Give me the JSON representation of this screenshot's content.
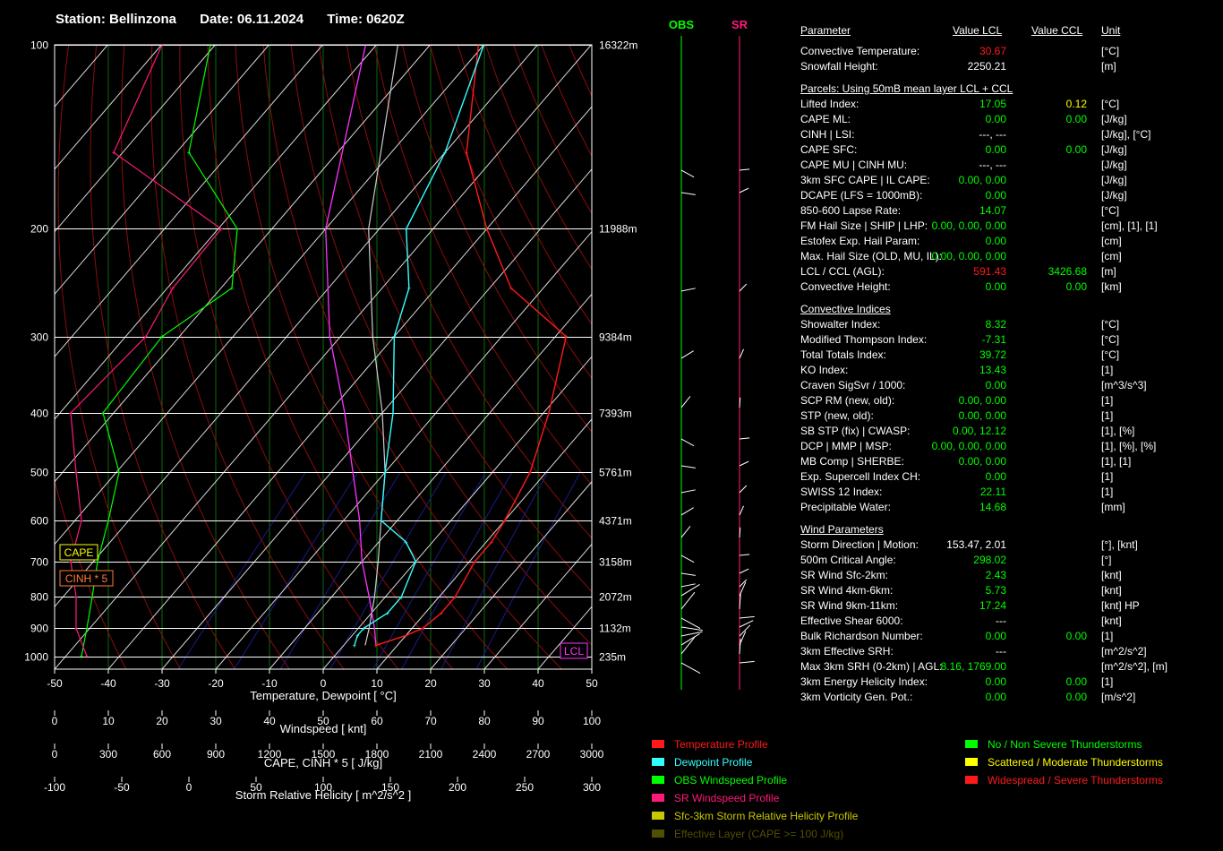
{
  "header": {
    "station": "Station: Bellinzona",
    "date": "Date: 06.11.2024",
    "time": "Time: 0620Z"
  },
  "chart_data": {
    "type": "line",
    "xlabel": "Temperature, Dewpoint  [ °C]",
    "xlim": [
      -50,
      50
    ],
    "x_ticks": [
      "-50",
      "-40",
      "-30",
      "-20",
      "-10",
      "0",
      "10",
      "20",
      "30",
      "40",
      "50"
    ],
    "pressure_ticks": [
      "100",
      "200",
      "300",
      "400",
      "500",
      "600",
      "700",
      "800",
      "900",
      "1000"
    ],
    "height_labels": [
      "16322m",
      "11988m",
      "9384m",
      "7393m",
      "5761m",
      "4371m",
      "3158m",
      "2072m",
      "1132m",
      "235m"
    ],
    "temperature": [
      [
        960,
        6
      ],
      [
        925,
        10
      ],
      [
        900,
        12
      ],
      [
        850,
        13
      ],
      [
        800,
        13
      ],
      [
        700,
        11
      ],
      [
        650,
        11
      ],
      [
        600,
        10
      ],
      [
        500,
        7
      ],
      [
        400,
        1
      ],
      [
        300,
        -8
      ],
      [
        250,
        -26
      ],
      [
        200,
        -40
      ],
      [
        150,
        -56
      ],
      [
        100,
        -71
      ]
    ],
    "dewpoint": [
      [
        960,
        2
      ],
      [
        925,
        1
      ],
      [
        900,
        1
      ],
      [
        850,
        3
      ],
      [
        800,
        3
      ],
      [
        700,
        0
      ],
      [
        650,
        -5
      ],
      [
        600,
        -13
      ],
      [
        500,
        -20
      ],
      [
        400,
        -28
      ],
      [
        300,
        -40
      ],
      [
        250,
        -45
      ],
      [
        200,
        -55
      ],
      [
        150,
        -60
      ],
      [
        100,
        -70
      ]
    ],
    "parcel": [
      [
        960,
        6
      ],
      [
        900,
        3
      ],
      [
        800,
        -3
      ],
      [
        700,
        -10
      ],
      [
        600,
        -17
      ],
      [
        500,
        -26
      ],
      [
        400,
        -37
      ],
      [
        300,
        -52
      ],
      [
        200,
        -70
      ],
      [
        100,
        -92
      ]
    ],
    "parcel2": [
      [
        960,
        4
      ],
      [
        900,
        2
      ],
      [
        800,
        -2
      ],
      [
        700,
        -7
      ],
      [
        600,
        -13
      ],
      [
        500,
        -20
      ],
      [
        400,
        -30
      ],
      [
        300,
        -44
      ],
      [
        200,
        -62
      ],
      [
        100,
        -86
      ]
    ],
    "windspeed_axis": {
      "label": "Windspeed  [ knt]",
      "ticks": [
        "0",
        "10",
        "20",
        "30",
        "40",
        "50",
        "60",
        "70",
        "80",
        "90",
        "100"
      ]
    },
    "obs_wind": [
      [
        1000,
        5
      ],
      [
        900,
        6
      ],
      [
        800,
        7
      ],
      [
        700,
        8
      ],
      [
        600,
        10
      ],
      [
        500,
        12
      ],
      [
        400,
        9
      ],
      [
        300,
        20
      ],
      [
        250,
        33
      ],
      [
        200,
        34
      ],
      [
        150,
        25
      ],
      [
        100,
        29
      ]
    ],
    "sr_wind": [
      [
        1000,
        6
      ],
      [
        900,
        4
      ],
      [
        800,
        4
      ],
      [
        700,
        3
      ],
      [
        600,
        5
      ],
      [
        500,
        4
      ],
      [
        400,
        3
      ],
      [
        300,
        17
      ],
      [
        250,
        22
      ],
      [
        200,
        31
      ],
      [
        150,
        11
      ],
      [
        100,
        20
      ]
    ],
    "cape_axis": {
      "label": "CAPE, CINH * 5  [ J/kg]",
      "ticks": [
        "0",
        "300",
        "600",
        "900",
        "1200",
        "1500",
        "1800",
        "2100",
        "2400",
        "2700",
        "3000"
      ]
    },
    "srh_axis": {
      "label": "Storm Relative Helicity  [ m^2/s^2 ]",
      "ticks": [
        "-100",
        "-50",
        "0",
        "50",
        "100",
        "150",
        "200",
        "250",
        "300"
      ]
    },
    "box_labels": {
      "cape": "CAPE",
      "cinh": "CINH * 5",
      "lcl": "LCL"
    },
    "hodo_titles": {
      "obs": "OBS",
      "sr": "SR"
    }
  },
  "table": {
    "header": {
      "name": "Parameter",
      "lcl": "Value LCL",
      "ccl": "Value CCL",
      "unit": "Unit"
    },
    "rows": [
      {
        "t": "row",
        "name": "Convective Temperature:",
        "lcl": "30.67",
        "lc": "r",
        "ccl": "",
        "unit": "[°C]"
      },
      {
        "t": "row",
        "name": "Snowfall Height:",
        "lcl": "2250.21",
        "lc": "w",
        "ccl": "",
        "unit": "[m]"
      },
      {
        "t": "hdr",
        "name": "Parcels: Using 50mB mean layer LCL + CCL"
      },
      {
        "t": "row",
        "name": "Lifted Index:",
        "lcl": "17.05",
        "lc": "g",
        "ccl": "0.12",
        "cc": "y",
        "unit": "[°C]"
      },
      {
        "t": "row",
        "name": "CAPE ML:",
        "lcl": "0.00",
        "lc": "g",
        "ccl": "0.00",
        "cc": "g",
        "unit": "[J/kg]"
      },
      {
        "t": "row",
        "name": "CINH | LSI:",
        "lcl": "---,   ---",
        "lc": "w",
        "ccl": "",
        "unit": "[J/kg], [°C]"
      },
      {
        "t": "row",
        "name": "CAPE SFC:",
        "lcl": "0.00",
        "lc": "g",
        "ccl": "0.00",
        "cc": "g",
        "unit": "[J/kg]"
      },
      {
        "t": "row",
        "name": "CAPE MU | CINH MU:",
        "lcl": "---,   ---",
        "lc": "w",
        "ccl": "",
        "unit": "[J/kg]"
      },
      {
        "t": "row",
        "name": "3km SFC CAPE | IL CAPE:",
        "lcl": "0.00,  0.00",
        "lc": "g",
        "ccl": "",
        "unit": "[J/kg]"
      },
      {
        "t": "row",
        "name": "DCAPE (LFS = 1000mB):",
        "lcl": "0.00",
        "lc": "g",
        "ccl": "",
        "unit": "[J/kg]"
      },
      {
        "t": "row",
        "name": "850-600 Lapse Rate:",
        "lcl": "14.07",
        "lc": "g",
        "ccl": "",
        "unit": "[°C]"
      },
      {
        "t": "row",
        "name": "FM Hail Size | SHIP | LHP:",
        "lcl": "0.00,  0.00,  0.00",
        "lc": "g",
        "ccl": "",
        "unit": "[cm], [1], [1]"
      },
      {
        "t": "row",
        "name": "Estofex Exp. Hail Param:",
        "lcl": "0.00",
        "lc": "g",
        "ccl": "",
        "unit": "[cm]"
      },
      {
        "t": "row",
        "name": "Max. Hail Size (OLD, MU, IL):",
        "lcl": "0.00,  0.00,  0.00",
        "lc": "g",
        "ccl": "",
        "unit": "[cm]"
      },
      {
        "t": "row",
        "name": "LCL / CCL (AGL):",
        "lcl": "591.43",
        "lc": "r",
        "ccl": "3426.68",
        "cc": "g",
        "unit": "[m]"
      },
      {
        "t": "row",
        "name": "Convective Height:",
        "lcl": "0.00",
        "lc": "g",
        "ccl": "0.00",
        "cc": "g",
        "unit": "[km]"
      },
      {
        "t": "hdr",
        "name": "Convective Indices"
      },
      {
        "t": "row",
        "name": "Showalter Index:",
        "lcl": "8.32",
        "lc": "g",
        "ccl": "",
        "unit": "[°C]"
      },
      {
        "t": "row",
        "name": "Modified Thompson Index:",
        "lcl": "-7.31",
        "lc": "g",
        "ccl": "",
        "unit": "[°C]"
      },
      {
        "t": "row",
        "name": "Total Totals Index:",
        "lcl": "39.72",
        "lc": "g",
        "ccl": "",
        "unit": "[°C]"
      },
      {
        "t": "row",
        "name": "KO Index:",
        "lcl": "13.43",
        "lc": "g",
        "ccl": "",
        "unit": "[1]"
      },
      {
        "t": "row",
        "name": "Craven SigSvr / 1000:",
        "lcl": "0.00",
        "lc": "g",
        "ccl": "",
        "unit": "[m^3/s^3]"
      },
      {
        "t": "row",
        "name": "SCP RM (new, old):",
        "lcl": "0.00,  0.00",
        "lc": "g",
        "ccl": "",
        "unit": "[1]"
      },
      {
        "t": "row",
        "name": "STP (new, old):",
        "lcl": "0.00,  0.00",
        "lc": "g",
        "ccl": "",
        "unit": "[1]"
      },
      {
        "t": "row",
        "name": "SB STP (fix) | CWASP:",
        "lcl": "0.00,  12.12",
        "lc": "g",
        "ccl": "",
        "unit": "[1], [%]"
      },
      {
        "t": "row",
        "name": "DCP | MMP | MSP:",
        "lcl": "0.00,  0.00,  0.00",
        "lc": "g",
        "ccl": "",
        "unit": "[1], [%], [%]"
      },
      {
        "t": "row",
        "name": "MB Comp | SHERBE:",
        "lcl": "0.00,  0.00",
        "lc": "g",
        "ccl": "",
        "unit": "[1], [1]"
      },
      {
        "t": "row",
        "name": "Exp. Supercell Index CH:",
        "lcl": "0.00",
        "lc": "g",
        "ccl": "",
        "unit": "[1]"
      },
      {
        "t": "row",
        "name": "SWISS 12 Index:",
        "lcl": "22.11",
        "lc": "g",
        "ccl": "",
        "unit": "[1]"
      },
      {
        "t": "row",
        "name": "Precipitable Water:",
        "lcl": "14.68",
        "lc": "g",
        "ccl": "",
        "unit": "[mm]"
      },
      {
        "t": "hdr",
        "name": "Wind Parameters"
      },
      {
        "t": "row",
        "name": "Storm Direction | Motion:",
        "lcl": "153.47,  2.01",
        "lc": "w",
        "ccl": "",
        "unit": "[°], [knt]"
      },
      {
        "t": "row",
        "name": "500m Critical Angle:",
        "lcl": "298.02",
        "lc": "g",
        "ccl": "",
        "unit": "[°]"
      },
      {
        "t": "row",
        "name": "SR Wind Sfc-2km:",
        "lcl": "2.43",
        "lc": "g",
        "ccl": "",
        "unit": "[knt]"
      },
      {
        "t": "row",
        "name": "SR Wind 4km-6km:",
        "lcl": "5.73",
        "lc": "g",
        "ccl": "",
        "unit": "[knt]"
      },
      {
        "t": "row",
        "name": "SR Wind 9km-11km:",
        "lcl": "17.24",
        "lc": "g",
        "ccl": "",
        "unit": "[knt] HP"
      },
      {
        "t": "row",
        "name": "Effective Shear 6000:",
        "lcl": "---",
        "lc": "w",
        "ccl": "",
        "unit": "[knt]"
      },
      {
        "t": "row",
        "name": "Bulk Richardson Number:",
        "lcl": "0.00",
        "lc": "g",
        "ccl": "0.00",
        "cc": "g",
        "unit": "[1]"
      },
      {
        "t": "row",
        "name": "3km Effective SRH:",
        "lcl": "---",
        "lc": "w",
        "ccl": "",
        "unit": "[m^2/s^2]"
      },
      {
        "t": "row",
        "name": "Max 3km SRH (0-2km) | AGL:",
        "lcl": "8.16,  1769.00",
        "lc": "g",
        "ccl": "",
        "unit": "[m^2/s^2], [m]"
      },
      {
        "t": "row",
        "name": "3km Energy Helicity Index:",
        "lcl": "0.00",
        "lc": "g",
        "ccl": "0.00",
        "cc": "g",
        "unit": "[1]"
      },
      {
        "t": "row",
        "name": "3km Vorticity Gen. Pot.:",
        "lcl": "0.00",
        "lc": "g",
        "ccl": "0.00",
        "cc": "g",
        "unit": "[m/s^2]"
      }
    ]
  },
  "legend": [
    {
      "label": "Temperature Profile",
      "color": "#ff1a1a",
      "col": 0,
      "row": 0
    },
    {
      "label": "Dewpoint Profile",
      "color": "#33ffff",
      "col": 0,
      "row": 1
    },
    {
      "label": "OBS Windspeed Profile",
      "color": "#00ff00",
      "col": 0,
      "row": 2
    },
    {
      "label": "SR Windspeed Profile",
      "color": "#ff1a7a",
      "col": 0,
      "row": 3
    },
    {
      "label": "Sfc-3km Storm Relative Helicity Profile",
      "color": "#c8c800",
      "col": 0,
      "row": 4
    },
    {
      "label": "Effective Layer (CAPE >= 100 J/kg)",
      "color": "#505000",
      "col": 0,
      "row": 5
    },
    {
      "label": "No / Non Severe Thunderstorms",
      "color": "#00ff00",
      "col": 1,
      "row": 0
    },
    {
      "label": "Scattered / Moderate Thunderstorms",
      "color": "#ffff00",
      "col": 1,
      "row": 1
    },
    {
      "label": "Widespread / Severe Thunderstorms",
      "color": "#ff1a1a",
      "col": 1,
      "row": 2
    }
  ]
}
